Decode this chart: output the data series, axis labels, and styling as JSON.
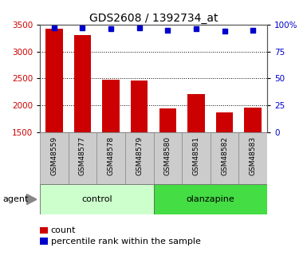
{
  "title": "GDS2608 / 1392734_at",
  "samples": [
    "GSM48559",
    "GSM48577",
    "GSM48578",
    "GSM48579",
    "GSM48580",
    "GSM48581",
    "GSM48582",
    "GSM48583"
  ],
  "bar_values": [
    3420,
    3310,
    2470,
    2460,
    1940,
    2210,
    1860,
    1960
  ],
  "percentile_values": [
    97,
    97,
    96,
    97,
    95,
    96,
    94,
    95
  ],
  "groups": [
    {
      "label": "control",
      "indices": [
        0,
        1,
        2,
        3
      ],
      "color": "#ccffcc"
    },
    {
      "label": "olanzapine",
      "indices": [
        4,
        5,
        6,
        7
      ],
      "color": "#44dd44"
    }
  ],
  "group_label": "agent",
  "bar_color": "#cc0000",
  "dot_color": "#0000cc",
  "ylim_left": [
    1500,
    3500
  ],
  "ylim_right": [
    0,
    100
  ],
  "yticks_left": [
    1500,
    2000,
    2500,
    3000,
    3500
  ],
  "yticks_right": [
    0,
    25,
    50,
    75,
    100
  ],
  "axis_label_color_left": "#cc0000",
  "axis_label_color_right": "#0000cc",
  "bar_bg_color": "#cccccc",
  "figsize": [
    3.85,
    3.45
  ],
  "dpi": 100
}
